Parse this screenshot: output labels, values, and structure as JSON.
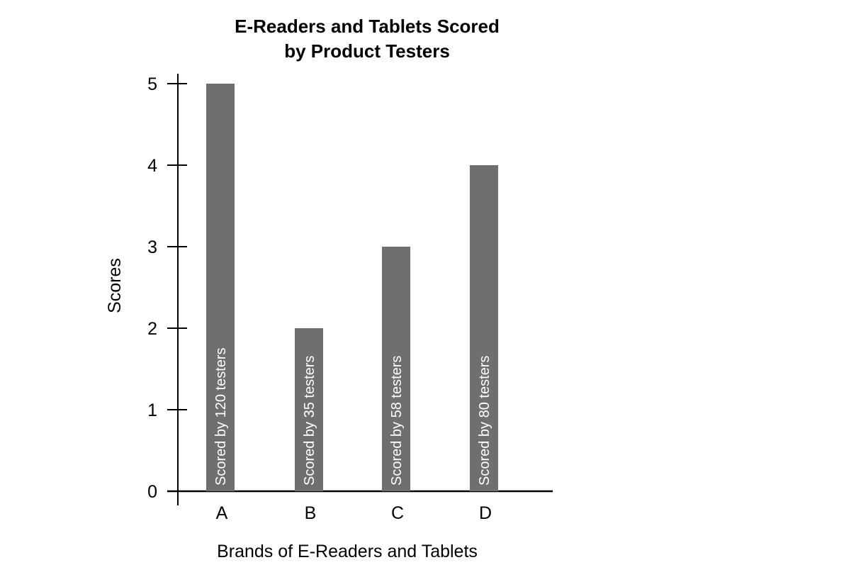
{
  "chart_data": {
    "type": "bar",
    "title_lines": [
      "E-Readers and Tablets Scored",
      "by Product Testers"
    ],
    "xlabel": "Brands of E-Readers and Tablets",
    "ylabel": "Scores",
    "categories": [
      "A",
      "B",
      "C",
      "D"
    ],
    "values": [
      5,
      2,
      3,
      4
    ],
    "bar_labels": [
      "Scored by 120 testers",
      "Scored by 35 testers",
      "Scored by 58 testers",
      "Scored by 80 testers"
    ],
    "yticks": [
      0,
      1,
      2,
      3,
      4,
      5
    ],
    "ylim": [
      0,
      5
    ],
    "grid": false,
    "legend": "none",
    "colors": {
      "bar": "#6f6f6f",
      "axis": "#000000",
      "bar_label_text": "#ffffff"
    }
  }
}
